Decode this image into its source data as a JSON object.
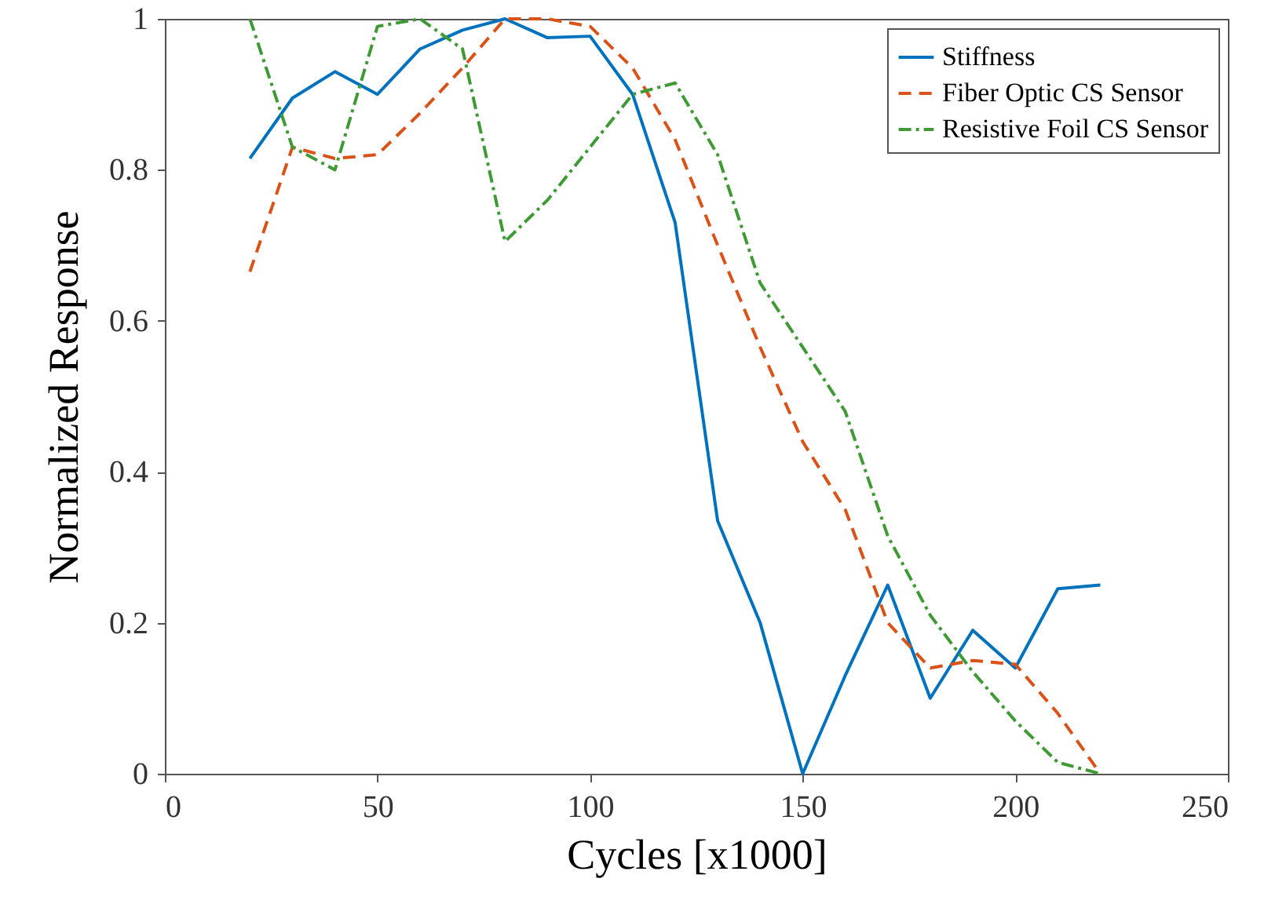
{
  "chart_data": {
    "type": "line",
    "xlabel": "Cycles [x1000]",
    "ylabel": "Normalized Response",
    "x": [
      20,
      30,
      40,
      50,
      60,
      70,
      80,
      90,
      100,
      110,
      120,
      130,
      140,
      150,
      160,
      170,
      180,
      190,
      200,
      210,
      220
    ],
    "series": [
      {
        "name": "Stiffness",
        "color": "#0072bd",
        "line_style": "solid",
        "values": [
          0.815,
          0.895,
          0.93,
          0.9,
          0.96,
          0.985,
          1.0,
          0.975,
          0.977,
          0.9,
          0.73,
          0.335,
          0.2,
          0.0,
          0.13,
          0.25,
          0.1,
          0.19,
          0.14,
          0.245,
          0.25
        ]
      },
      {
        "name": "Fiber Optic CS Sensor",
        "color": "#d95319",
        "line_style": "dashed",
        "values": [
          0.665,
          0.83,
          0.815,
          0.82,
          0.875,
          0.935,
          1.0,
          1.0,
          0.99,
          0.935,
          0.84,
          0.7,
          0.565,
          0.44,
          0.35,
          0.2,
          0.14,
          0.15,
          0.145,
          0.08,
          0.0
        ]
      },
      {
        "name": "Resistive Foil CS Sensor",
        "color": "#3f9a35",
        "line_style": "dashdot",
        "values": [
          1.0,
          0.83,
          0.8,
          0.99,
          1.0,
          0.96,
          0.705,
          0.76,
          0.83,
          0.9,
          0.915,
          0.82,
          0.65,
          0.565,
          0.48,
          0.315,
          0.21,
          0.135,
          0.07,
          0.015,
          0.0
        ]
      }
    ],
    "xlim": [
      0,
      250
    ],
    "xticks": [
      0,
      50,
      100,
      150,
      200,
      250
    ],
    "ylim": [
      0,
      1
    ],
    "yticks": [
      0,
      0.2,
      0.4,
      0.6,
      0.8,
      1
    ],
    "grid": false,
    "legend": "top right"
  }
}
